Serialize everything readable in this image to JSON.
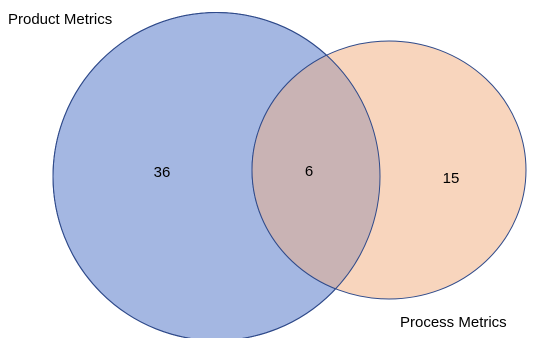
{
  "diagram": {
    "type": "venn",
    "sets": [
      {
        "label": "Product Metrics",
        "fill": "#a4b7e2",
        "stroke": "#2f4a8a"
      },
      {
        "label": "Process Metrics",
        "fill": "#f8d5bd",
        "stroke": "#2f4a8a"
      }
    ],
    "overlap_fill": "#c9b3b4",
    "counts": {
      "product_only": "36",
      "both": "6",
      "process_only": "15"
    }
  }
}
